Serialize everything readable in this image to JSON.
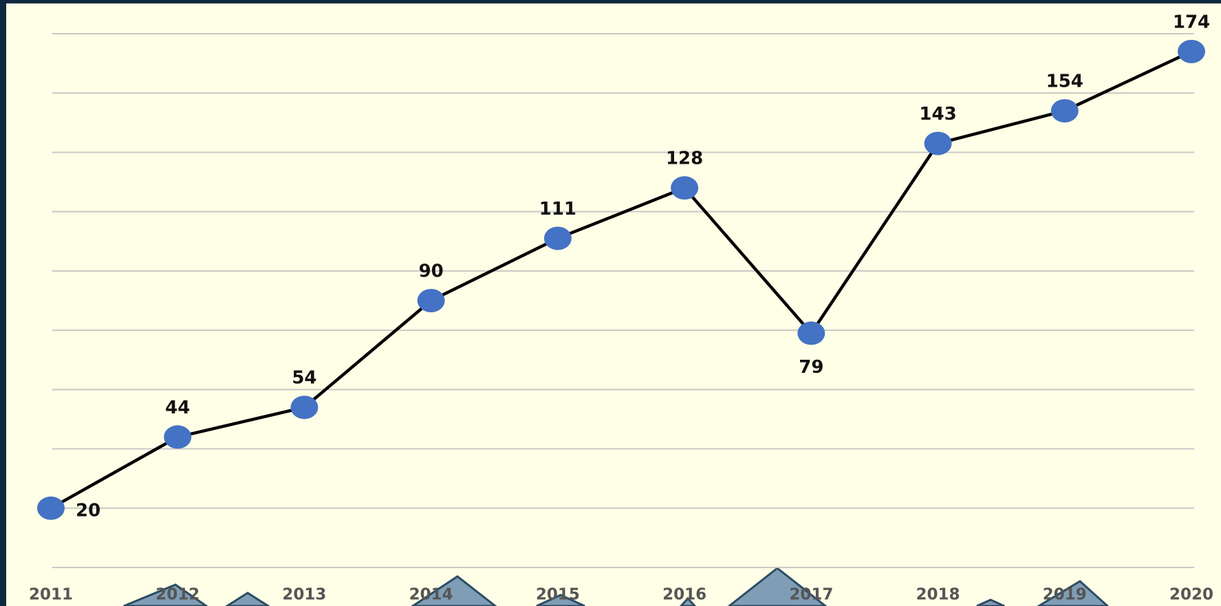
{
  "chart_data": {
    "type": "line",
    "categories": [
      "2011",
      "2012",
      "2013",
      "2014",
      "2015",
      "2016",
      "2017",
      "2018",
      "2019",
      "2020"
    ],
    "values": [
      20,
      44,
      54,
      90,
      111,
      128,
      79,
      143,
      154,
      174
    ],
    "color": "#000000",
    "marker_color": "#4472c4",
    "ylim": [
      0,
      180
    ],
    "yticks": [
      0,
      20,
      40,
      60,
      80,
      100,
      120,
      140,
      160,
      180
    ],
    "grid": true
  }
}
